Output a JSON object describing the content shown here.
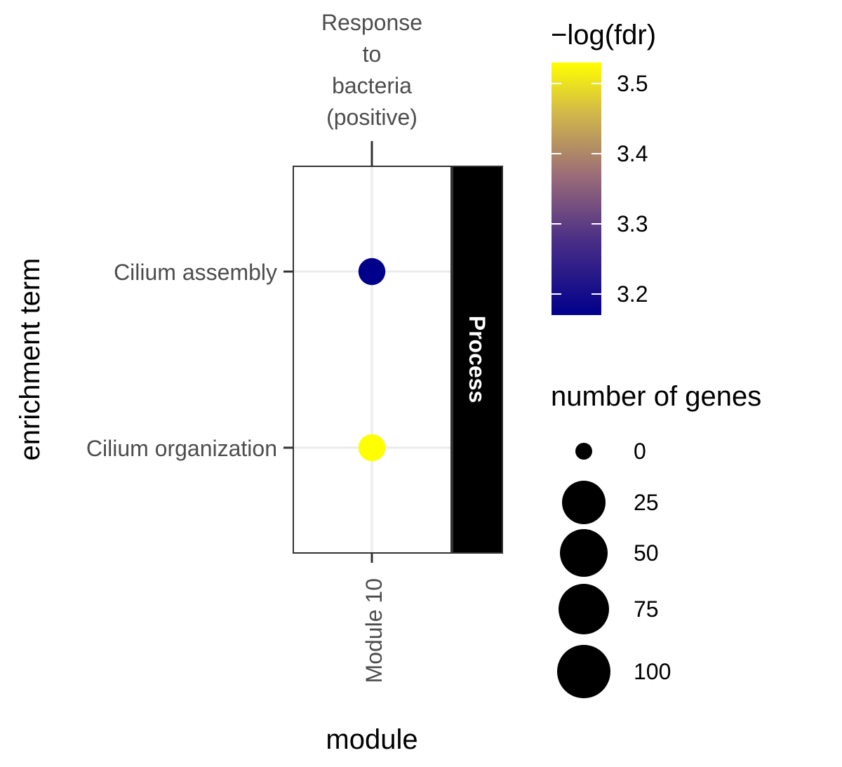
{
  "chart_data": {
    "type": "scatter",
    "facet": "Response to bacteria (positive)",
    "x_categories": [
      "Module 10"
    ],
    "y_categories": [
      "Cilium assembly",
      "Cilium organization"
    ],
    "strip_label": "Process",
    "xlabel": "module",
    "ylabel": "enrichment term",
    "points": [
      {
        "x": "Module 10",
        "y": "Cilium assembly",
        "genes": 25,
        "neg_log_fdr": 3.17
      },
      {
        "x": "Module 10",
        "y": "Cilium organization",
        "genes": 25,
        "neg_log_fdr": 3.53
      }
    ],
    "color_legend": {
      "title": "−log(fdr)",
      "range": [
        3.17,
        3.53
      ],
      "ticks": [
        "3.2",
        "3.3",
        "3.4",
        "3.5"
      ],
      "colors": [
        "#00008b",
        "#7b4f8a",
        "#c2a25c",
        "#ffff00"
      ]
    },
    "size_legend": {
      "title": "number of genes",
      "values": [
        0,
        25,
        50,
        75,
        100
      ],
      "labels": [
        "0",
        "25",
        "50",
        "75",
        "100"
      ]
    },
    "grid": true
  }
}
